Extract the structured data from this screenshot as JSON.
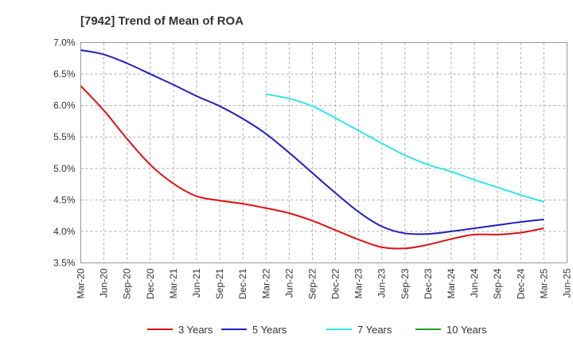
{
  "chart_data": {
    "type": "line",
    "title": "[7942]  Trend of Mean of ROA",
    "xlabel": "",
    "ylabel": "",
    "ylim": [
      3.5,
      7.0
    ],
    "y_ticks": [
      "3.5%",
      "4.0%",
      "4.5%",
      "5.0%",
      "5.5%",
      "6.0%",
      "6.5%",
      "7.0%"
    ],
    "y_tick_values": [
      3.5,
      4.0,
      4.5,
      5.0,
      5.5,
      6.0,
      6.5,
      7.0
    ],
    "x_ticks": [
      "Mar-20",
      "Jun-20",
      "Sep-20",
      "Dec-20",
      "Mar-21",
      "Jun-21",
      "Sep-21",
      "Dec-21",
      "Mar-22",
      "Jun-22",
      "Sep-22",
      "Dec-22",
      "Mar-23",
      "Jun-23",
      "Sep-23",
      "Dec-23",
      "Mar-24",
      "Jun-24",
      "Sep-24",
      "Dec-24",
      "Mar-25",
      "Jun-25"
    ],
    "grid": "horizontal dashed",
    "legend_position": "bottom",
    "series": [
      {
        "name": "3 Years",
        "color": "#dd1111",
        "x": [
          "Mar-20",
          "Jun-20",
          "Sep-20",
          "Dec-20",
          "Mar-21",
          "Jun-21",
          "Sep-21",
          "Dec-21",
          "Mar-22",
          "Jun-22",
          "Sep-22",
          "Dec-22",
          "Mar-23",
          "Jun-23",
          "Sep-23",
          "Dec-23",
          "Mar-24",
          "Jun-24",
          "Sep-24",
          "Dec-24",
          "Mar-25"
        ],
        "values": [
          6.31,
          5.92,
          5.47,
          5.06,
          4.76,
          4.56,
          4.49,
          4.44,
          4.37,
          4.29,
          4.17,
          4.02,
          3.87,
          3.75,
          3.73,
          3.79,
          3.88,
          3.95,
          3.95,
          3.98,
          4.05
        ]
      },
      {
        "name": "5 Years",
        "color": "#1f1fbf",
        "x": [
          "Mar-20",
          "Jun-20",
          "Sep-20",
          "Dec-20",
          "Mar-21",
          "Jun-21",
          "Sep-21",
          "Dec-21",
          "Mar-22",
          "Jun-22",
          "Sep-22",
          "Dec-22",
          "Mar-23",
          "Jun-23",
          "Sep-23",
          "Dec-23",
          "Mar-24",
          "Jun-24",
          "Sep-24",
          "Dec-24",
          "Mar-25"
        ],
        "values": [
          6.88,
          6.81,
          6.67,
          6.5,
          6.33,
          6.15,
          5.99,
          5.79,
          5.55,
          5.25,
          4.93,
          4.61,
          4.31,
          4.08,
          3.97,
          3.96,
          4.0,
          4.05,
          4.1,
          4.15,
          4.19
        ]
      },
      {
        "name": "7 Years",
        "color": "#33e5e5",
        "x": [
          "Mar-22",
          "Jun-22",
          "Sep-22",
          "Dec-22",
          "Mar-23",
          "Jun-23",
          "Sep-23",
          "Dec-23",
          "Mar-24",
          "Jun-24",
          "Sep-24",
          "Dec-24",
          "Mar-25"
        ],
        "values": [
          6.18,
          6.11,
          5.99,
          5.8,
          5.6,
          5.4,
          5.21,
          5.06,
          4.95,
          4.82,
          4.7,
          4.58,
          4.47
        ]
      },
      {
        "name": "10 Years",
        "color": "#229922",
        "x": [],
        "values": []
      }
    ]
  }
}
